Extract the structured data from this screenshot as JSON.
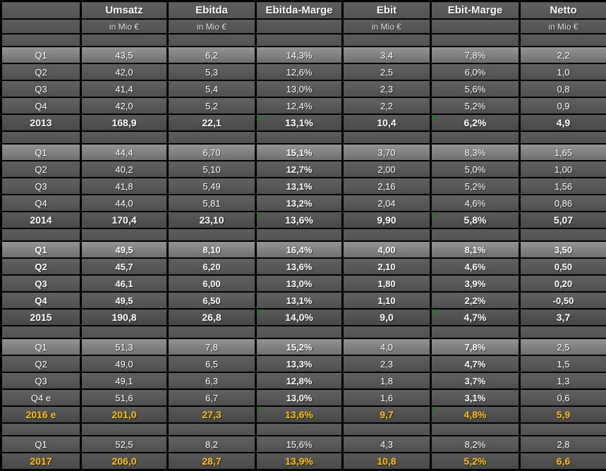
{
  "table": {
    "colors": {
      "estimate_text": "#FFC000",
      "flag_triangle": "#1B7A1B",
      "grid": "#000000",
      "cell_gray": "#575757",
      "first_row_gray": "#8A8A8A"
    },
    "columns": [
      {
        "key": "row-label",
        "label": "",
        "unit": ""
      },
      {
        "key": "umsatz",
        "label": "Umsatz",
        "unit": "in Mio €"
      },
      {
        "key": "ebitda",
        "label": "Ebitda",
        "unit": "in Mio €"
      },
      {
        "key": "ebitda-marge",
        "label": "Ebitda-Marge",
        "unit": ""
      },
      {
        "key": "ebit",
        "label": "Ebit",
        "unit": "in Mio €"
      },
      {
        "key": "ebit-marge",
        "label": "Ebit-Marge",
        "unit": ""
      },
      {
        "key": "netto",
        "label": "Netto",
        "unit": "in Mio €"
      }
    ],
    "blocks": [
      {
        "year": "2013",
        "rows": [
          {
            "label": "Q1",
            "style": "first",
            "cells": [
              {
                "v": "43,5"
              },
              {
                "v": "6,2"
              },
              {
                "v": "14,3%"
              },
              {
                "v": "3,4"
              },
              {
                "v": "7,8%"
              },
              {
                "v": "2,2"
              }
            ]
          },
          {
            "label": "Q2",
            "style": "normal",
            "cells": [
              {
                "v": "42,0"
              },
              {
                "v": "5,3"
              },
              {
                "v": "12,6%"
              },
              {
                "v": "2,5"
              },
              {
                "v": "6,0%"
              },
              {
                "v": "1,0"
              }
            ]
          },
          {
            "label": "Q3",
            "style": "normal",
            "cells": [
              {
                "v": "41,4"
              },
              {
                "v": "5,4"
              },
              {
                "v": "13,0%"
              },
              {
                "v": "2,3"
              },
              {
                "v": "5,6%"
              },
              {
                "v": "0,8"
              }
            ]
          },
          {
            "label": "Q4",
            "style": "normal",
            "cells": [
              {
                "v": "42,0"
              },
              {
                "v": "5,2"
              },
              {
                "v": "12,4%"
              },
              {
                "v": "2,2"
              },
              {
                "v": "5,2%"
              },
              {
                "v": "0,9"
              }
            ]
          },
          {
            "label": "2013",
            "style": "total",
            "cells": [
              {
                "v": "168,9"
              },
              {
                "v": "22,1"
              },
              {
                "v": "13,1%",
                "tri": 1
              },
              {
                "v": "10,4"
              },
              {
                "v": "6,2%",
                "tri": 1
              },
              {
                "v": "4,9"
              }
            ]
          }
        ]
      },
      {
        "year": "2014",
        "rows": [
          {
            "label": "Q1",
            "style": "first",
            "cells": [
              {
                "v": "44,4"
              },
              {
                "v": "6,70"
              },
              {
                "v": "15,1%",
                "b": 1
              },
              {
                "v": "3,70"
              },
              {
                "v": "8,3%"
              },
              {
                "v": "1,65"
              }
            ]
          },
          {
            "label": "Q2",
            "style": "normal",
            "cells": [
              {
                "v": "40,2"
              },
              {
                "v": "5,10"
              },
              {
                "v": "12,7%",
                "b": 1
              },
              {
                "v": "2,00"
              },
              {
                "v": "5,0%"
              },
              {
                "v": "1,00"
              }
            ]
          },
          {
            "label": "Q3",
            "style": "normal",
            "cells": [
              {
                "v": "41,8"
              },
              {
                "v": "5,49"
              },
              {
                "v": "13,1%",
                "b": 1
              },
              {
                "v": "2,16"
              },
              {
                "v": "5,2%"
              },
              {
                "v": "1,56"
              }
            ]
          },
          {
            "label": "Q4",
            "style": "normal",
            "cells": [
              {
                "v": "44,0"
              },
              {
                "v": "5,81"
              },
              {
                "v": "13,2%",
                "b": 1
              },
              {
                "v": "2,04"
              },
              {
                "v": "4,6%"
              },
              {
                "v": "0,86"
              }
            ]
          },
          {
            "label": "2014",
            "style": "total",
            "cells": [
              {
                "v": "170,4"
              },
              {
                "v": "23,10"
              },
              {
                "v": "13,6%",
                "tri": 1
              },
              {
                "v": "9,90"
              },
              {
                "v": "5,8%",
                "tri": 1
              },
              {
                "v": "5,07"
              }
            ]
          }
        ]
      },
      {
        "year": "2015",
        "rows": [
          {
            "label": "Q1",
            "style": "first",
            "bold": 1,
            "cells": [
              {
                "v": "49,5"
              },
              {
                "v": "8,10"
              },
              {
                "v": "16,4%"
              },
              {
                "v": "4,00"
              },
              {
                "v": "8,1%"
              },
              {
                "v": "3,50"
              }
            ]
          },
          {
            "label": "Q2",
            "style": "normal",
            "bold": 1,
            "cells": [
              {
                "v": "45,7"
              },
              {
                "v": "6,20"
              },
              {
                "v": "13,6%"
              },
              {
                "v": "2,10"
              },
              {
                "v": "4,6%"
              },
              {
                "v": "0,50"
              }
            ]
          },
          {
            "label": "Q3",
            "style": "normal",
            "bold": 1,
            "cells": [
              {
                "v": "46,1"
              },
              {
                "v": "6,00"
              },
              {
                "v": "13,0%"
              },
              {
                "v": "1,80"
              },
              {
                "v": "3,9%"
              },
              {
                "v": "0,20"
              }
            ]
          },
          {
            "label": "Q4",
            "style": "normal",
            "bold": 1,
            "cells": [
              {
                "v": "49,5"
              },
              {
                "v": "6,50"
              },
              {
                "v": "13,1%"
              },
              {
                "v": "1,10"
              },
              {
                "v": "2,2%"
              },
              {
                "v": "-0,50"
              }
            ]
          },
          {
            "label": "2015",
            "style": "total",
            "cells": [
              {
                "v": "190,8"
              },
              {
                "v": "26,8"
              },
              {
                "v": "14,0%",
                "tri": 1
              },
              {
                "v": "9,0"
              },
              {
                "v": "4,7%",
                "tri": 1
              },
              {
                "v": "3,7"
              }
            ]
          }
        ]
      },
      {
        "year": "2016",
        "rows": [
          {
            "label": "Q1",
            "style": "first",
            "cells": [
              {
                "v": "51,3"
              },
              {
                "v": "7,8"
              },
              {
                "v": "15,2%",
                "b": 1
              },
              {
                "v": "4,0"
              },
              {
                "v": "7,8%",
                "b": 1
              },
              {
                "v": "2,5"
              }
            ]
          },
          {
            "label": "Q2",
            "style": "normal",
            "cells": [
              {
                "v": "49,0"
              },
              {
                "v": "6,5"
              },
              {
                "v": "13,3%",
                "b": 1
              },
              {
                "v": "2,3"
              },
              {
                "v": "4,7%",
                "b": 1
              },
              {
                "v": "1,5"
              }
            ]
          },
          {
            "label": "Q3",
            "style": "normal",
            "cells": [
              {
                "v": "49,1"
              },
              {
                "v": "6,3"
              },
              {
                "v": "12,8%",
                "b": 1
              },
              {
                "v": "1,8"
              },
              {
                "v": "3,7%",
                "b": 1
              },
              {
                "v": "1,3"
              }
            ]
          },
          {
            "label": "Q4 e",
            "style": "normal",
            "cells": [
              {
                "v": "51,6"
              },
              {
                "v": "6,7"
              },
              {
                "v": "13,0%",
                "b": 1
              },
              {
                "v": "1,6"
              },
              {
                "v": "3,1%",
                "b": 1
              },
              {
                "v": "0,6"
              }
            ]
          },
          {
            "label": "2016 e",
            "style": "total-est",
            "cells": [
              {
                "v": "201,0"
              },
              {
                "v": "27,3"
              },
              {
                "v": "13,6%",
                "tri": 1
              },
              {
                "v": "9,7"
              },
              {
                "v": "4,8%",
                "tri": 1
              },
              {
                "v": "5,9"
              }
            ]
          }
        ]
      },
      {
        "year": "2017",
        "rows": [
          {
            "label": "Q1",
            "style": "normal",
            "cells": [
              {
                "v": "52,5"
              },
              {
                "v": "8,2"
              },
              {
                "v": "15,6%"
              },
              {
                "v": "4,3"
              },
              {
                "v": "8,2%"
              },
              {
                "v": "2,8"
              }
            ]
          },
          {
            "label": "2017",
            "style": "total-est",
            "cells": [
              {
                "v": "206,0"
              },
              {
                "v": "28,7"
              },
              {
                "v": "13,9%"
              },
              {
                "v": "10,8"
              },
              {
                "v": "5,2%"
              },
              {
                "v": "6,6"
              }
            ]
          }
        ]
      }
    ]
  }
}
